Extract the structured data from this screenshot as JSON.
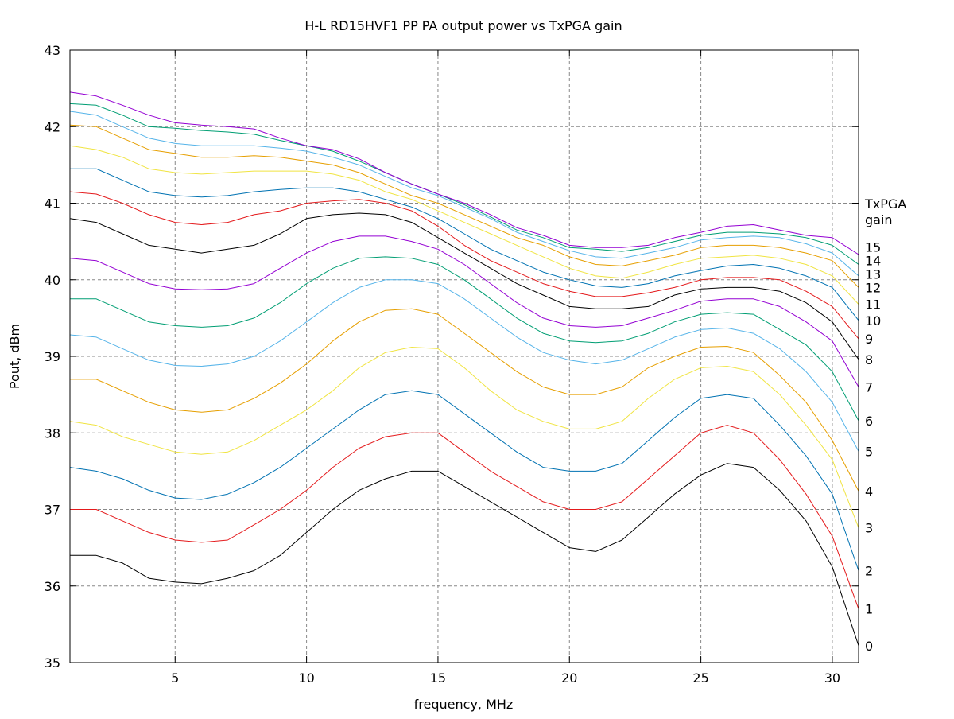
{
  "chart_data": {
    "type": "line",
    "title": "H-L RD15HVF1 PP PA output power vs TxPGA gain",
    "xlabel": "frequency, MHz",
    "ylabel": "Pout, dBm",
    "xlim": [
      1,
      31
    ],
    "ylim": [
      35,
      43
    ],
    "xticks": [
      5,
      10,
      15,
      20,
      25,
      30
    ],
    "yticks": [
      35,
      36,
      37,
      38,
      39,
      40,
      41,
      42,
      43
    ],
    "grid": true,
    "legend_title": [
      "TxPGA",
      "gain"
    ],
    "legend_placement": "right, labels at curve ends",
    "x": [
      1,
      2,
      3,
      4,
      5,
      6,
      7,
      8,
      9,
      10,
      11,
      12,
      13,
      14,
      15,
      16,
      17,
      18,
      19,
      20,
      21,
      22,
      23,
      24,
      25,
      26,
      27,
      28,
      29,
      30,
      31
    ],
    "series": [
      {
        "name": "0",
        "color": "#000000",
        "values": [
          36.4,
          36.4,
          36.3,
          36.1,
          36.05,
          36.03,
          36.1,
          36.2,
          36.4,
          36.7,
          37.0,
          37.25,
          37.4,
          37.5,
          37.5,
          37.3,
          37.1,
          36.9,
          36.7,
          36.5,
          36.45,
          36.6,
          36.9,
          37.2,
          37.45,
          37.6,
          37.55,
          37.25,
          36.85,
          36.25,
          35.22
        ]
      },
      {
        "name": "1",
        "color": "#e41a1c",
        "values": [
          37.0,
          37.0,
          36.85,
          36.7,
          36.6,
          36.57,
          36.6,
          36.8,
          37.0,
          37.25,
          37.55,
          37.8,
          37.95,
          38.0,
          38.0,
          37.75,
          37.5,
          37.3,
          37.1,
          37.0,
          37.0,
          37.1,
          37.4,
          37.7,
          38.0,
          38.1,
          38.0,
          37.65,
          37.2,
          36.65,
          35.7
        ]
      },
      {
        "name": "2",
        "color": "#0072b2",
        "values": [
          37.55,
          37.5,
          37.4,
          37.25,
          37.15,
          37.13,
          37.2,
          37.35,
          37.55,
          37.8,
          38.05,
          38.3,
          38.5,
          38.55,
          38.5,
          38.25,
          38.0,
          37.75,
          37.55,
          37.5,
          37.5,
          37.6,
          37.9,
          38.2,
          38.45,
          38.5,
          38.45,
          38.1,
          37.7,
          37.2,
          36.2
        ]
      },
      {
        "name": "3",
        "color": "#f0e442",
        "values": [
          38.15,
          38.1,
          37.95,
          37.85,
          37.75,
          37.72,
          37.75,
          37.9,
          38.1,
          38.3,
          38.55,
          38.85,
          39.05,
          39.12,
          39.1,
          38.85,
          38.55,
          38.3,
          38.15,
          38.05,
          38.05,
          38.15,
          38.45,
          38.7,
          38.85,
          38.87,
          38.8,
          38.5,
          38.1,
          37.65,
          36.76
        ]
      },
      {
        "name": "4",
        "color": "#e69f00",
        "values": [
          38.7,
          38.7,
          38.55,
          38.4,
          38.3,
          38.27,
          38.3,
          38.45,
          38.65,
          38.9,
          39.2,
          39.45,
          39.6,
          39.62,
          39.55,
          39.3,
          39.05,
          38.8,
          38.6,
          38.5,
          38.5,
          38.6,
          38.85,
          39.0,
          39.12,
          39.13,
          39.05,
          38.75,
          38.4,
          37.9,
          37.24
        ]
      },
      {
        "name": "5",
        "color": "#56b4e9",
        "values": [
          39.28,
          39.25,
          39.1,
          38.95,
          38.88,
          38.87,
          38.9,
          39.0,
          39.2,
          39.45,
          39.7,
          39.9,
          40.0,
          40.0,
          39.95,
          39.75,
          39.5,
          39.25,
          39.05,
          38.95,
          38.9,
          38.95,
          39.1,
          39.25,
          39.35,
          39.37,
          39.3,
          39.1,
          38.8,
          38.4,
          37.76
        ]
      },
      {
        "name": "6",
        "color": "#009e73",
        "values": [
          39.75,
          39.75,
          39.6,
          39.45,
          39.4,
          39.38,
          39.4,
          39.5,
          39.7,
          39.95,
          40.15,
          40.28,
          40.3,
          40.28,
          40.2,
          40.0,
          39.75,
          39.5,
          39.3,
          39.2,
          39.18,
          39.2,
          39.3,
          39.45,
          39.55,
          39.57,
          39.55,
          39.35,
          39.15,
          38.8,
          38.16
        ]
      },
      {
        "name": "7",
        "color": "#9400d3",
        "values": [
          40.28,
          40.25,
          40.1,
          39.95,
          39.88,
          39.87,
          39.88,
          39.95,
          40.15,
          40.35,
          40.5,
          40.57,
          40.57,
          40.5,
          40.4,
          40.2,
          39.95,
          39.7,
          39.5,
          39.4,
          39.38,
          39.4,
          39.5,
          39.6,
          39.72,
          39.75,
          39.75,
          39.65,
          39.45,
          39.2,
          38.6
        ]
      },
      {
        "name": "8",
        "color": "#000000",
        "values": [
          40.8,
          40.75,
          40.6,
          40.45,
          40.4,
          40.35,
          40.4,
          40.45,
          40.6,
          40.8,
          40.85,
          40.87,
          40.85,
          40.75,
          40.55,
          40.35,
          40.15,
          39.95,
          39.8,
          39.65,
          39.62,
          39.62,
          39.65,
          39.8,
          39.88,
          39.9,
          39.9,
          39.85,
          39.7,
          39.45,
          38.96
        ]
      },
      {
        "name": "9",
        "color": "#e41a1c",
        "values": [
          41.15,
          41.12,
          41.0,
          40.85,
          40.75,
          40.72,
          40.75,
          40.85,
          40.9,
          41.0,
          41.03,
          41.05,
          41.0,
          40.9,
          40.7,
          40.45,
          40.25,
          40.1,
          39.95,
          39.85,
          39.78,
          39.78,
          39.83,
          39.9,
          40.0,
          40.03,
          40.03,
          40.0,
          39.85,
          39.65,
          39.23
        ]
      },
      {
        "name": "10",
        "color": "#0072b2",
        "values": [
          41.45,
          41.45,
          41.3,
          41.15,
          41.1,
          41.08,
          41.1,
          41.15,
          41.18,
          41.2,
          41.2,
          41.15,
          41.05,
          40.95,
          40.8,
          40.6,
          40.4,
          40.25,
          40.1,
          40.0,
          39.92,
          39.9,
          39.95,
          40.05,
          40.12,
          40.18,
          40.2,
          40.15,
          40.05,
          39.9,
          39.47
        ]
      },
      {
        "name": "11",
        "color": "#f0e442",
        "values": [
          41.75,
          41.7,
          41.6,
          41.45,
          41.4,
          41.38,
          41.4,
          41.42,
          41.42,
          41.42,
          41.38,
          41.3,
          41.15,
          41.05,
          40.9,
          40.75,
          40.6,
          40.45,
          40.3,
          40.15,
          40.05,
          40.02,
          40.1,
          40.2,
          40.28,
          40.3,
          40.32,
          40.28,
          40.2,
          40.05,
          39.68
        ]
      },
      {
        "name": "12",
        "color": "#e69f00",
        "values": [
          42.02,
          42.0,
          41.85,
          41.7,
          41.65,
          41.6,
          41.6,
          41.62,
          41.6,
          41.55,
          41.5,
          41.4,
          41.25,
          41.1,
          41.0,
          40.85,
          40.7,
          40.55,
          40.45,
          40.3,
          40.2,
          40.18,
          40.25,
          40.32,
          40.42,
          40.45,
          40.45,
          40.42,
          40.35,
          40.25,
          39.9
        ]
      },
      {
        "name": "13",
        "color": "#56b4e9",
        "values": [
          42.2,
          42.15,
          42.0,
          41.85,
          41.78,
          41.75,
          41.75,
          41.75,
          41.72,
          41.68,
          41.6,
          41.5,
          41.35,
          41.2,
          41.1,
          40.95,
          40.8,
          40.62,
          40.5,
          40.38,
          40.3,
          40.28,
          40.35,
          40.42,
          40.52,
          40.55,
          40.57,
          40.55,
          40.47,
          40.35,
          40.05
        ]
      },
      {
        "name": "14",
        "color": "#009e73",
        "values": [
          42.3,
          42.28,
          42.15,
          42.0,
          41.98,
          41.95,
          41.93,
          41.9,
          41.82,
          41.75,
          41.68,
          41.55,
          41.4,
          41.25,
          41.12,
          40.98,
          40.82,
          40.65,
          40.55,
          40.42,
          40.4,
          40.37,
          40.42,
          40.5,
          40.58,
          40.62,
          40.62,
          40.6,
          40.55,
          40.45,
          40.2
        ]
      },
      {
        "name": "15",
        "color": "#9400d3",
        "values": [
          42.45,
          42.4,
          42.28,
          42.15,
          42.05,
          42.02,
          42.0,
          41.97,
          41.85,
          41.75,
          41.7,
          41.58,
          41.4,
          41.25,
          41.12,
          41.0,
          40.85,
          40.68,
          40.58,
          40.45,
          40.42,
          40.42,
          40.45,
          40.55,
          40.62,
          40.7,
          40.72,
          40.65,
          40.58,
          40.55,
          40.33
        ]
      }
    ]
  }
}
